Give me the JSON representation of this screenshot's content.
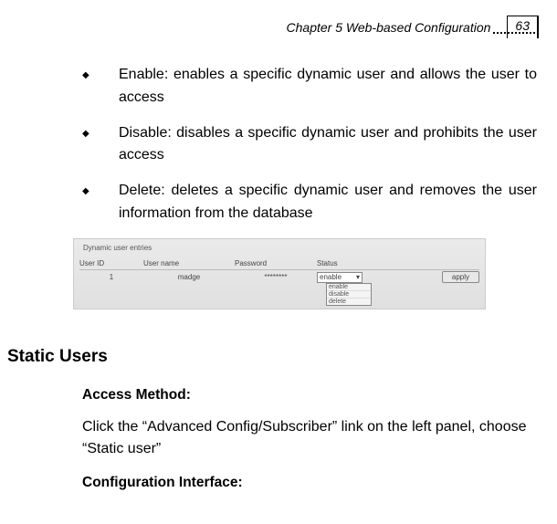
{
  "header": {
    "chapter": "Chapter 5 Web-based Configuration",
    "page": "63"
  },
  "bullets": [
    {
      "label": "Enable:",
      "text": "enables a specific dynamic user and allows the user to access"
    },
    {
      "label": "Disable:",
      "text": "disables a specific dynamic user and prohibits the user access"
    },
    {
      "label": "Delete:",
      "text": "deletes a specific dynamic user and removes the user information from the database"
    }
  ],
  "screenshot": {
    "fieldset_label": "Dynamic user entries",
    "columns": {
      "c1": "User ID",
      "c2": "User name",
      "c3": "Password",
      "c4": "Status"
    },
    "row": {
      "id": "1",
      "user": "madge",
      "pwd": "********"
    },
    "select_value": "enable",
    "options": [
      "enable",
      "disable",
      "delete"
    ],
    "apply": "apply"
  },
  "section_heading": "Static Users",
  "access_method_h": "Access Method:",
  "access_method_text": "Click the “Advanced Config/Subscriber” link on the left panel, choose “Static user”",
  "config_interface_h": "Configuration Interface:"
}
